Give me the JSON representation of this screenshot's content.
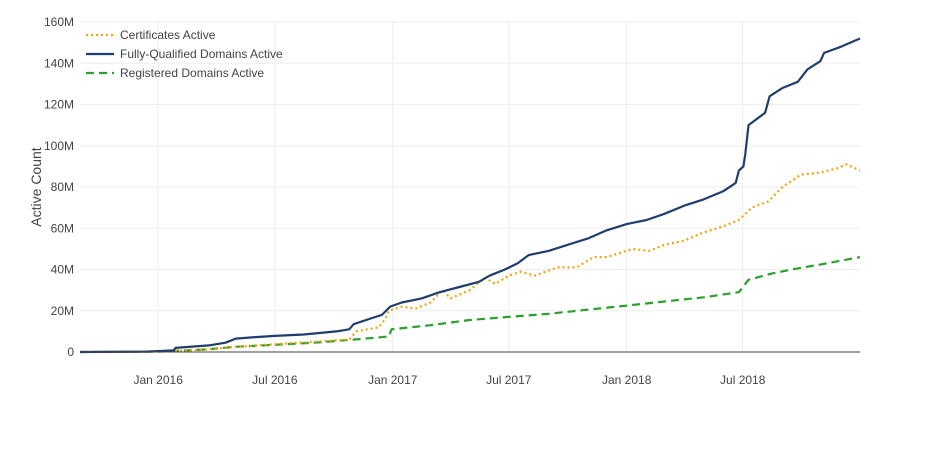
{
  "chart_data": {
    "type": "line",
    "title": "",
    "xlabel": "",
    "ylabel": "Active Count",
    "x_range": [
      "2015-09-01",
      "2018-12-31"
    ],
    "ylim": [
      0,
      160000000
    ],
    "y_ticks": [
      0,
      20000000,
      40000000,
      60000000,
      80000000,
      100000000,
      120000000,
      140000000,
      160000000
    ],
    "y_tick_labels": [
      "0",
      "20M",
      "40M",
      "60M",
      "80M",
      "100M",
      "120M",
      "140M",
      "160M"
    ],
    "x_ticks": [
      "2016-01-01",
      "2016-07-01",
      "2017-01-01",
      "2017-07-01",
      "2018-01-01",
      "2018-07-01"
    ],
    "x_tick_labels": [
      "Jan 2016",
      "Jul 2016",
      "Jan 2017",
      "Jul 2017",
      "Jan 2018",
      "Jul 2018"
    ],
    "grid": true,
    "legend_position": "top-left",
    "series": [
      {
        "name": "Certificates Active",
        "color": "#f0a30a",
        "dash": "dotted",
        "points": [
          [
            "2015-09-01",
            0
          ],
          [
            "2015-12-01",
            200000
          ],
          [
            "2016-01-20",
            400000
          ],
          [
            "2016-03-15",
            1200000
          ],
          [
            "2016-05-01",
            2500000
          ],
          [
            "2016-07-01",
            3800000
          ],
          [
            "2016-09-01",
            5000000
          ],
          [
            "2016-10-25",
            6000000
          ],
          [
            "2016-11-05",
            10000000
          ],
          [
            "2016-12-10",
            12000000
          ],
          [
            "2016-12-20",
            16000000
          ],
          [
            "2016-12-26",
            20000000
          ],
          [
            "2017-01-15",
            22000000
          ],
          [
            "2017-02-05",
            21000000
          ],
          [
            "2017-03-01",
            24000000
          ],
          [
            "2017-03-20",
            30000000
          ],
          [
            "2017-04-01",
            26000000
          ],
          [
            "2017-05-01",
            30000000
          ],
          [
            "2017-05-25",
            36000000
          ],
          [
            "2017-06-10",
            33000000
          ],
          [
            "2017-07-01",
            37000000
          ],
          [
            "2017-07-20",
            39000000
          ],
          [
            "2017-08-10",
            37000000
          ],
          [
            "2017-09-15",
            41000000
          ],
          [
            "2017-10-15",
            41000000
          ],
          [
            "2017-11-10",
            46000000
          ],
          [
            "2017-12-01",
            46000000
          ],
          [
            "2018-01-10",
            50000000
          ],
          [
            "2018-02-05",
            49000000
          ],
          [
            "2018-03-01",
            52000000
          ],
          [
            "2018-04-01",
            54000000
          ],
          [
            "2018-05-01",
            58000000
          ],
          [
            "2018-06-01",
            61000000
          ],
          [
            "2018-06-25",
            64000000
          ],
          [
            "2018-07-15",
            70000000
          ],
          [
            "2018-08-10",
            73000000
          ],
          [
            "2018-09-01",
            80000000
          ],
          [
            "2018-09-30",
            86000000
          ],
          [
            "2018-10-30",
            87000000
          ],
          [
            "2018-11-25",
            89000000
          ],
          [
            "2018-12-10",
            91000000
          ],
          [
            "2018-12-31",
            88000000
          ]
        ]
      },
      {
        "name": "Fully-Qualified Domains Active",
        "color": "#1f3e6e",
        "dash": "solid",
        "points": [
          [
            "2015-09-01",
            0
          ],
          [
            "2015-12-15",
            200000
          ],
          [
            "2016-01-25",
            800000
          ],
          [
            "2016-01-28",
            2000000
          ],
          [
            "2016-03-20",
            3200000
          ],
          [
            "2016-04-15",
            4500000
          ],
          [
            "2016-05-01",
            6500000
          ],
          [
            "2016-06-01",
            7200000
          ],
          [
            "2016-07-01",
            7800000
          ],
          [
            "2016-08-15",
            8500000
          ],
          [
            "2016-10-05",
            10000000
          ],
          [
            "2016-10-25",
            11000000
          ],
          [
            "2016-11-01",
            13500000
          ],
          [
            "2016-11-25",
            16000000
          ],
          [
            "2016-12-15",
            18000000
          ],
          [
            "2016-12-28",
            22000000
          ],
          [
            "2017-01-15",
            24000000
          ],
          [
            "2017-02-15",
            26000000
          ],
          [
            "2017-03-15",
            29000000
          ],
          [
            "2017-04-15",
            31500000
          ],
          [
            "2017-05-15",
            34000000
          ],
          [
            "2017-06-01",
            37000000
          ],
          [
            "2017-06-25",
            40000000
          ],
          [
            "2017-07-15",
            43000000
          ],
          [
            "2017-08-01",
            47000000
          ],
          [
            "2017-09-01",
            49000000
          ],
          [
            "2017-10-01",
            52000000
          ],
          [
            "2017-11-01",
            55000000
          ],
          [
            "2017-12-01",
            59000000
          ],
          [
            "2018-01-01",
            62000000
          ],
          [
            "2018-02-01",
            64000000
          ],
          [
            "2018-03-01",
            67000000
          ],
          [
            "2018-04-01",
            71000000
          ],
          [
            "2018-05-01",
            74000000
          ],
          [
            "2018-06-01",
            78000000
          ],
          [
            "2018-06-20",
            82000000
          ],
          [
            "2018-06-25",
            88000000
          ],
          [
            "2018-07-02",
            90000000
          ],
          [
            "2018-07-05",
            96000000
          ],
          [
            "2018-07-10",
            110000000
          ],
          [
            "2018-08-05",
            116000000
          ],
          [
            "2018-08-12",
            124000000
          ],
          [
            "2018-09-01",
            128000000
          ],
          [
            "2018-09-25",
            131000000
          ],
          [
            "2018-10-10",
            137000000
          ],
          [
            "2018-10-30",
            141000000
          ],
          [
            "2018-11-05",
            145000000
          ],
          [
            "2018-12-01",
            148000000
          ],
          [
            "2018-12-31",
            152000000
          ]
        ]
      },
      {
        "name": "Registered Domains Active",
        "color": "#2ca02c",
        "dash": "dashed",
        "points": [
          [
            "2015-09-01",
            0
          ],
          [
            "2016-01-01",
            200000
          ],
          [
            "2016-03-15",
            1200000
          ],
          [
            "2016-05-01",
            2500000
          ],
          [
            "2016-07-01",
            3500000
          ],
          [
            "2016-09-01",
            4500000
          ],
          [
            "2016-11-01",
            6000000
          ],
          [
            "2016-12-26",
            7500000
          ],
          [
            "2016-12-30",
            11000000
          ],
          [
            "2017-03-01",
            13000000
          ],
          [
            "2017-05-01",
            15500000
          ],
          [
            "2017-07-01",
            17000000
          ],
          [
            "2017-09-01",
            18500000
          ],
          [
            "2017-11-01",
            20500000
          ],
          [
            "2018-01-01",
            22500000
          ],
          [
            "2018-03-01",
            24500000
          ],
          [
            "2018-05-01",
            26500000
          ],
          [
            "2018-06-25",
            29000000
          ],
          [
            "2018-07-10",
            35000000
          ],
          [
            "2018-08-15",
            38000000
          ],
          [
            "2018-09-15",
            40000000
          ],
          [
            "2018-11-01",
            42500000
          ],
          [
            "2018-12-31",
            46000000
          ]
        ]
      }
    ]
  }
}
